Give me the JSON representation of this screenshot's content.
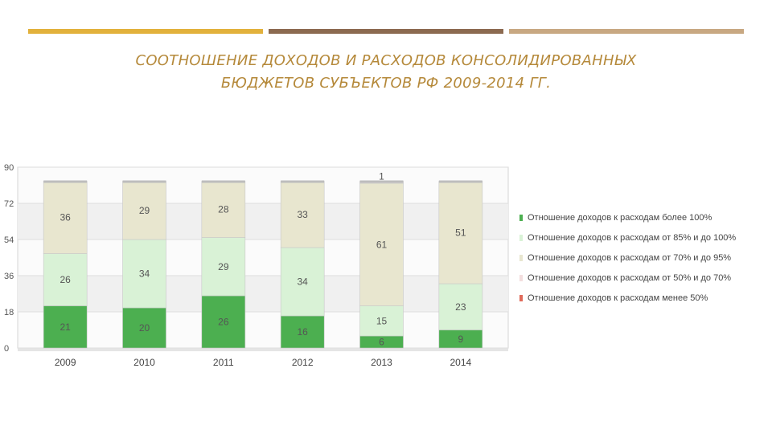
{
  "header": {
    "title_line1": "СООТНОШЕНИЕ ДОХОДОВ И РАСХОДОВ КОНСОЛИДИРОВАННЫХ",
    "title_line2": "БЮДЖЕТОВ СУБЪЕКТОВ РФ 2009-2014 ГГ."
  },
  "decor": {
    "stripe_colors": [
      "#e2b13c",
      "#8c6a50",
      "#c8a882"
    ]
  },
  "chart_data": {
    "type": "bar",
    "stacked": true,
    "categories": [
      "2009",
      "2010",
      "2011",
      "2012",
      "2013",
      "2014"
    ],
    "y_ticks": [
      0,
      18,
      36,
      54,
      72,
      90
    ],
    "ylim": [
      0,
      90
    ],
    "grid": true,
    "legend_position": "right",
    "series": [
      {
        "name": "Отношение доходов к расходам более 100%",
        "color": "#4caf50",
        "values": [
          21,
          20,
          26,
          16,
          6,
          9
        ]
      },
      {
        "name": "Отношение доходов к расходам от 85% и до 100%",
        "color": "#d9f2d6",
        "values": [
          26,
          34,
          29,
          34,
          15,
          23
        ]
      },
      {
        "name": "Отношение доходов к расходам от 70% и до 95%",
        "color": "#e8e6cf",
        "values": [
          36,
          29,
          28,
          33,
          61,
          51
        ]
      },
      {
        "name": "Отношение доходов к расходам от 50% и до 70%",
        "color": "#f3dede",
        "values": [
          0,
          0,
          0,
          0,
          1,
          0
        ]
      },
      {
        "name": "Отношение доходов к расходам менее 50%",
        "color": "#e06a5a",
        "values": [
          0,
          0,
          0,
          0,
          0,
          0
        ]
      }
    ]
  }
}
